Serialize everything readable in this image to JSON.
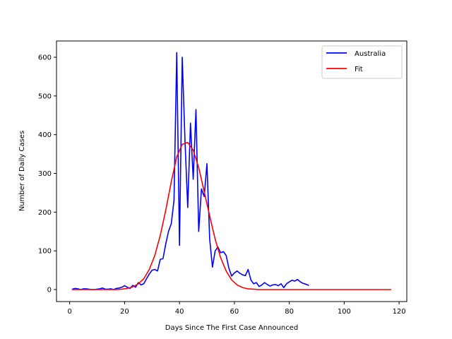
{
  "chart_data": {
    "type": "line",
    "title": "",
    "xlabel": "Days Since The First Case Announced",
    "ylabel": "Number of Daily Cases",
    "xlim": [
      -4.8,
      122.8
    ],
    "ylim": [
      -31,
      642
    ],
    "xticks": [
      0,
      20,
      40,
      60,
      80,
      100,
      120
    ],
    "yticks": [
      0,
      100,
      200,
      300,
      400,
      500,
      600
    ],
    "grid": false,
    "legend_position": "top-right",
    "series": [
      {
        "name": "Australia",
        "color": "#0000ff",
        "x": [
          1,
          2,
          3,
          4,
          5,
          6,
          7,
          8,
          9,
          10,
          11,
          12,
          13,
          14,
          15,
          16,
          17,
          18,
          19,
          20,
          21,
          22,
          23,
          24,
          25,
          26,
          27,
          28,
          29,
          30,
          31,
          32,
          33,
          34,
          35,
          36,
          37,
          38,
          39,
          40,
          41,
          42,
          43,
          44,
          45,
          46,
          47,
          48,
          49,
          50,
          51,
          52,
          53,
          54,
          55,
          56,
          57,
          58,
          59,
          60,
          61,
          62,
          63,
          64,
          65,
          66,
          67,
          68,
          69,
          70,
          71,
          72,
          73,
          74,
          75,
          76,
          77,
          78,
          79,
          80,
          81,
          82,
          83,
          84,
          85,
          86,
          87
        ],
        "y": [
          1,
          3,
          2,
          0,
          2,
          2,
          1,
          0,
          0,
          1,
          2,
          4,
          1,
          1,
          2,
          0,
          3,
          4,
          6,
          10,
          6,
          3,
          11,
          6,
          18,
          12,
          15,
          28,
          40,
          50,
          52,
          48,
          78,
          80,
          118,
          150,
          170,
          230,
          612,
          114,
          600,
          385,
          212,
          430,
          285,
          465,
          150,
          260,
          240,
          325,
          130,
          58,
          100,
          110,
          95,
          98,
          88,
          55,
          35,
          43,
          48,
          42,
          38,
          36,
          52,
          25,
          15,
          18,
          8,
          12,
          18,
          13,
          9,
          12,
          13,
          10,
          15,
          5,
          15,
          20,
          24,
          22,
          26,
          20,
          16,
          14,
          11
        ]
      },
      {
        "name": "Fit",
        "color": "#ff0000",
        "x": [
          1,
          3,
          5,
          7,
          9,
          11,
          13,
          15,
          17,
          19,
          21,
          23,
          25,
          27,
          29,
          31,
          33,
          35,
          37,
          39,
          41,
          43,
          45,
          47,
          49,
          51,
          53,
          55,
          57,
          59,
          61,
          63,
          65,
          67,
          69,
          71,
          73,
          75,
          77,
          80,
          85,
          90,
          95,
          100,
          105,
          110,
          117
        ],
        "y": [
          0,
          0,
          0,
          0,
          0,
          0,
          0,
          0,
          0,
          1,
          3,
          7,
          15,
          28,
          52,
          88,
          140,
          205,
          278,
          343,
          375,
          380,
          360,
          315,
          253,
          190,
          130,
          82,
          48,
          25,
          12,
          5,
          2,
          1,
          0,
          0,
          0,
          0,
          0,
          0,
          0,
          0,
          0,
          0,
          0,
          0,
          0
        ]
      }
    ]
  }
}
